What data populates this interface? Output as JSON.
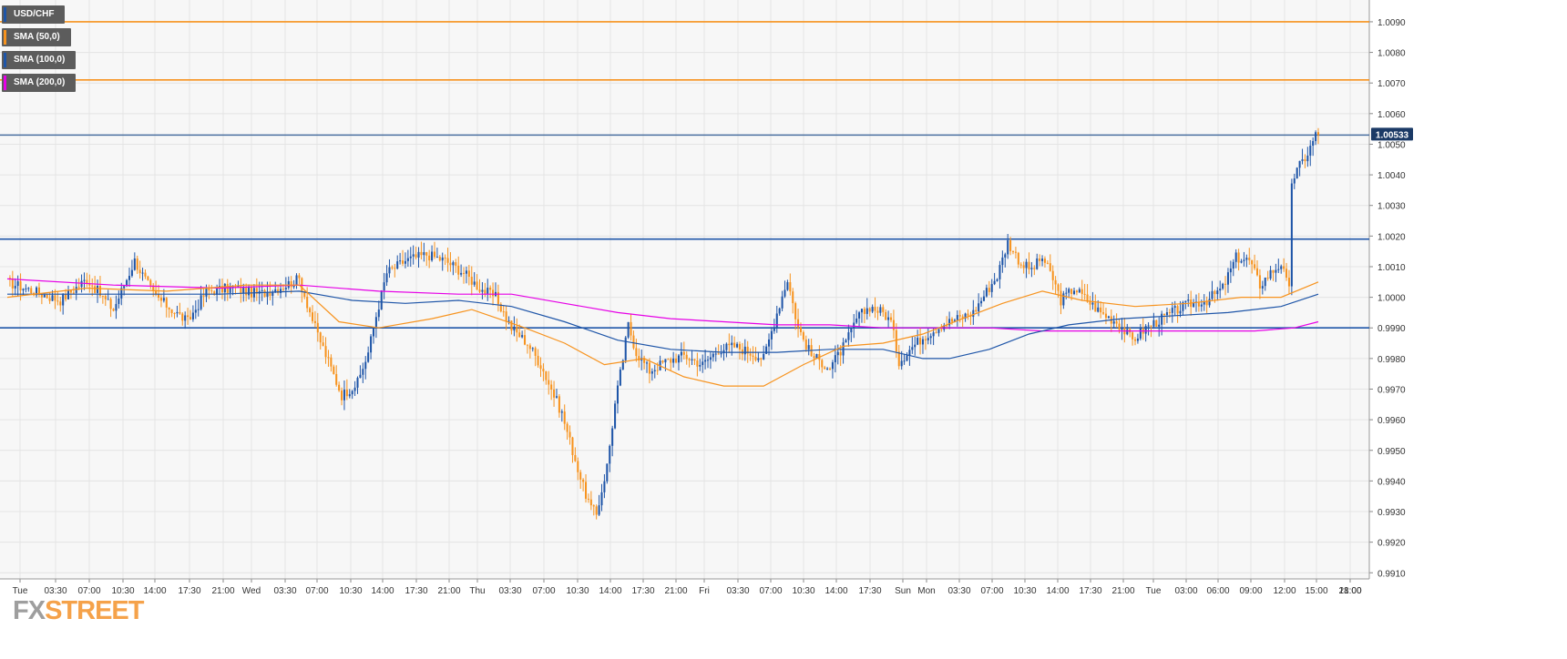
{
  "instrument": "USD/CHF",
  "legend": [
    {
      "label": "USD/CHF",
      "color": "#1e55a8"
    },
    {
      "label": "SMA (50,0)",
      "color": "#f7931e"
    },
    {
      "label": "SMA (100,0)",
      "color": "#1e55a8"
    },
    {
      "label": "SMA (200,0)",
      "color": "#e600e6"
    }
  ],
  "logo": {
    "part1": "FX",
    "part2": "STREET"
  },
  "colors": {
    "up": "#1e55a8",
    "down": "#f7931e",
    "sma50": "#f7931e",
    "sma100": "#1e55a8",
    "sma200": "#e600e6",
    "grid": "#e4e4e4"
  },
  "chart_data": {
    "type": "candlestick",
    "title": "USD/CHF",
    "ylim": [
      0.9908,
      1.0096
    ],
    "y_ticks": [
      "1.0090",
      "1.0080",
      "1.0070",
      "1.0060",
      "1.0050",
      "1.0040",
      "1.0030",
      "1.0020",
      "1.0010",
      "1.0000",
      "0.9990",
      "0.9980",
      "0.9970",
      "0.9960",
      "0.9950",
      "0.9940",
      "0.9930",
      "0.9920",
      "0.9910"
    ],
    "x_ticks": [
      "Tue",
      "03:30",
      "07:00",
      "10:30",
      "14:00",
      "17:30",
      "21:00",
      "Wed",
      "03:30",
      "07:00",
      "10:30",
      "14:00",
      "17:30",
      "21:00",
      "Thu",
      "03:30",
      "07:00",
      "10:30",
      "14:00",
      "17:30",
      "21:00",
      "Fri",
      "03:30",
      "07:00",
      "10:30",
      "14:00",
      "17:30",
      "Sun",
      "Mon",
      "03:30",
      "07:00",
      "10:30",
      "14:00",
      "17:30",
      "21:00",
      "Tue",
      "03:00",
      "06:00",
      "09:00",
      "12:00",
      "15:00",
      "18:00",
      "21:00"
    ],
    "current_price": "1.00533",
    "horizontal_lines": [
      {
        "value": 1.009,
        "color": "#f7931e"
      },
      {
        "value": 1.0071,
        "color": "#f7931e"
      },
      {
        "value": 1.0053,
        "color": "#4a6fa0"
      },
      {
        "value": 1.0019,
        "color": "#1e55a8"
      },
      {
        "value": 0.999,
        "color": "#1e55a8"
      }
    ],
    "anchors": [
      [
        0,
        1.0005
      ],
      [
        10,
        1.0002
      ],
      [
        20,
        0.9999
      ],
      [
        30,
        1.0006
      ],
      [
        40,
        0.9996
      ],
      [
        48,
        1.0012
      ],
      [
        55,
        1.0001
      ],
      [
        62,
        0.9996
      ],
      [
        68,
        0.9992
      ],
      [
        75,
        1.0002
      ],
      [
        85,
        1.0003
      ],
      [
        95,
        1.0001
      ],
      [
        105,
        1.0004
      ],
      [
        110,
        1.0006
      ],
      [
        116,
        0.999
      ],
      [
        121,
        0.9979
      ],
      [
        126,
        0.9968
      ],
      [
        132,
        0.9972
      ],
      [
        136,
        0.9982
      ],
      [
        139,
        0.9994
      ],
      [
        143,
        1.0008
      ],
      [
        150,
        1.0012
      ],
      [
        158,
        1.0014
      ],
      [
        165,
        1.0012
      ],
      [
        172,
        1.0008
      ],
      [
        178,
        1.0003
      ],
      [
        184,
        1.0
      ],
      [
        190,
        0.999
      ],
      [
        196,
        0.9985
      ],
      [
        201,
        0.9978
      ],
      [
        205,
        0.997
      ],
      [
        209,
        0.9962
      ],
      [
        213,
        0.995
      ],
      [
        217,
        0.9938
      ],
      [
        220,
        0.9931
      ],
      [
        222,
        0.9929
      ],
      [
        226,
        0.9945
      ],
      [
        229,
        0.9965
      ],
      [
        232,
        0.998
      ],
      [
        234,
        0.9991
      ],
      [
        237,
        0.9982
      ],
      [
        242,
        0.9976
      ],
      [
        248,
        0.9979
      ],
      [
        255,
        0.9981
      ],
      [
        262,
        0.9978
      ],
      [
        268,
        0.9983
      ],
      [
        274,
        0.9984
      ],
      [
        280,
        0.9982
      ],
      [
        285,
        0.998
      ],
      [
        290,
        0.9995
      ],
      [
        294,
        1.0006
      ],
      [
        298,
        0.999
      ],
      [
        303,
        0.9981
      ],
      [
        310,
        0.9977
      ],
      [
        316,
        0.9985
      ],
      [
        320,
        0.9993
      ],
      [
        325,
        0.9997
      ],
      [
        330,
        0.9995
      ],
      [
        333,
        0.9992
      ],
      [
        336,
        0.9979
      ],
      [
        340,
        0.9983
      ],
      [
        345,
        0.9987
      ],
      [
        352,
        0.9991
      ],
      [
        358,
        0.9993
      ],
      [
        364,
        0.9995
      ],
      [
        369,
        1.0002
      ],
      [
        373,
        1.0007
      ],
      [
        377,
        1.0018
      ],
      [
        382,
        1.0011
      ],
      [
        386,
        1.0009
      ],
      [
        390,
        1.0013
      ],
      [
        394,
        1.0006
      ],
      [
        397,
        0.9999
      ],
      [
        402,
        1.0003
      ],
      [
        407,
        0.9999
      ],
      [
        412,
        0.9995
      ],
      [
        418,
        0.9992
      ],
      [
        424,
        0.9986
      ],
      [
        429,
        0.999
      ],
      [
        435,
        0.9993
      ],
      [
        441,
        0.9996
      ],
      [
        446,
        0.9998
      ],
      [
        452,
        0.9999
      ],
      [
        458,
        1.0003
      ],
      [
        463,
        1.0013
      ],
      [
        468,
        1.0012
      ],
      [
        472,
        1.0004
      ],
      [
        476,
        1.0008
      ],
      [
        480,
        1.0011
      ],
      [
        483,
        1.0002
      ],
      [
        484,
        1.0038
      ],
      [
        487,
        1.0043
      ],
      [
        490,
        1.0047
      ],
      [
        493,
        1.0053
      ],
      [
        494,
        1.0053
      ]
    ],
    "sma50": [
      [
        0,
        1.0
      ],
      [
        30,
        1.0003
      ],
      [
        60,
        1.0002
      ],
      [
        90,
        1.0004
      ],
      [
        110,
        1.0004
      ],
      [
        125,
        0.9992
      ],
      [
        140,
        0.999
      ],
      [
        160,
        0.9993
      ],
      [
        175,
        0.9996
      ],
      [
        185,
        0.9993
      ],
      [
        195,
        0.999
      ],
      [
        210,
        0.9985
      ],
      [
        225,
        0.9978
      ],
      [
        240,
        0.998
      ],
      [
        255,
        0.9974
      ],
      [
        270,
        0.9971
      ],
      [
        285,
        0.9971
      ],
      [
        300,
        0.9978
      ],
      [
        315,
        0.9984
      ],
      [
        330,
        0.9985
      ],
      [
        345,
        0.9988
      ],
      [
        360,
        0.9993
      ],
      [
        375,
        0.9998
      ],
      [
        390,
        1.0002
      ],
      [
        405,
        0.9999
      ],
      [
        425,
        0.9997
      ],
      [
        445,
        0.9998
      ],
      [
        465,
        1.0
      ],
      [
        480,
        1.0
      ],
      [
        494,
        1.0005
      ]
    ],
    "sma100": [
      [
        0,
        1.0001
      ],
      [
        40,
        1.0001
      ],
      [
        80,
        1.0001
      ],
      [
        110,
        1.0002
      ],
      [
        130,
        0.9999
      ],
      [
        150,
        0.9998
      ],
      [
        170,
        0.9999
      ],
      [
        190,
        0.9997
      ],
      [
        210,
        0.9992
      ],
      [
        230,
        0.9986
      ],
      [
        250,
        0.9983
      ],
      [
        270,
        0.9982
      ],
      [
        290,
        0.9982
      ],
      [
        310,
        0.9983
      ],
      [
        330,
        0.9983
      ],
      [
        345,
        0.998
      ],
      [
        355,
        0.998
      ],
      [
        370,
        0.9983
      ],
      [
        385,
        0.9988
      ],
      [
        400,
        0.9991
      ],
      [
        420,
        0.9993
      ],
      [
        440,
        0.9994
      ],
      [
        460,
        0.9995
      ],
      [
        480,
        0.9997
      ],
      [
        494,
        1.0001
      ]
    ],
    "sma200": [
      [
        0,
        1.0006
      ],
      [
        40,
        1.0004
      ],
      [
        80,
        1.0003
      ],
      [
        110,
        1.0004
      ],
      [
        140,
        1.0002
      ],
      [
        170,
        1.0001
      ],
      [
        190,
        1.0001
      ],
      [
        210,
        0.9998
      ],
      [
        230,
        0.9995
      ],
      [
        250,
        0.9993
      ],
      [
        270,
        0.9992
      ],
      [
        290,
        0.9991
      ],
      [
        310,
        0.9991
      ],
      [
        330,
        0.999
      ],
      [
        350,
        0.999
      ],
      [
        370,
        0.999
      ],
      [
        390,
        0.9989
      ],
      [
        410,
        0.9989
      ],
      [
        430,
        0.9989
      ],
      [
        450,
        0.9989
      ],
      [
        470,
        0.9989
      ],
      [
        485,
        0.999
      ],
      [
        494,
        0.9992
      ]
    ]
  }
}
